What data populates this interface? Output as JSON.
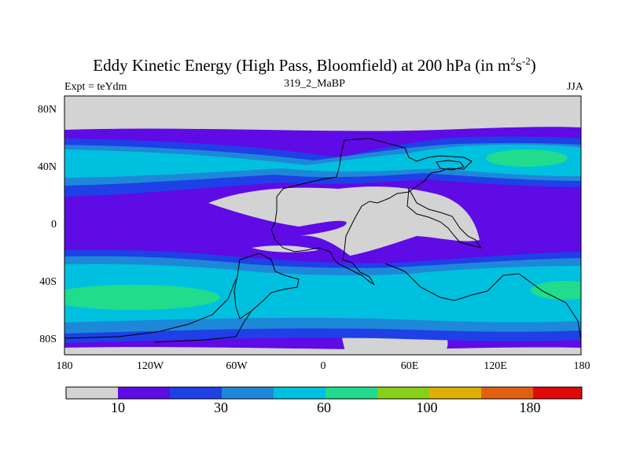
{
  "figure": {
    "title": "Eddy Kinetic Energy (High Pass, Bloomfield) at 200 hPa (in m",
    "title_exp1": "2",
    "title_mid": "s",
    "title_exp2": "-2",
    "title_end": ")",
    "subtitle": "319_2_MaBP",
    "left_label": "Expt = teYdm",
    "right_label": "JJA"
  },
  "axes": {
    "lat_ticks": [
      "80N",
      "40N",
      "0",
      "40S",
      "80S"
    ],
    "lon_ticks": [
      "180",
      "120W",
      "60W",
      "0",
      "60E",
      "120E",
      "180"
    ]
  },
  "colorbar": {
    "colors": [
      "#d3d3d3",
      "#5e0be6",
      "#1f40e6",
      "#1e88d8",
      "#00c0e0",
      "#20dc8c",
      "#88d018",
      "#e0b000",
      "#e06010",
      "#e00808"
    ],
    "labels": [
      "10",
      "30",
      "60",
      "100",
      "180"
    ]
  },
  "palette": {
    "gray": "#d3d3d3",
    "purple": "#5e0be6",
    "blue": "#1f40e6",
    "medblue": "#1e88d8",
    "cyan": "#00c0e0",
    "green": "#20dc8c"
  }
}
